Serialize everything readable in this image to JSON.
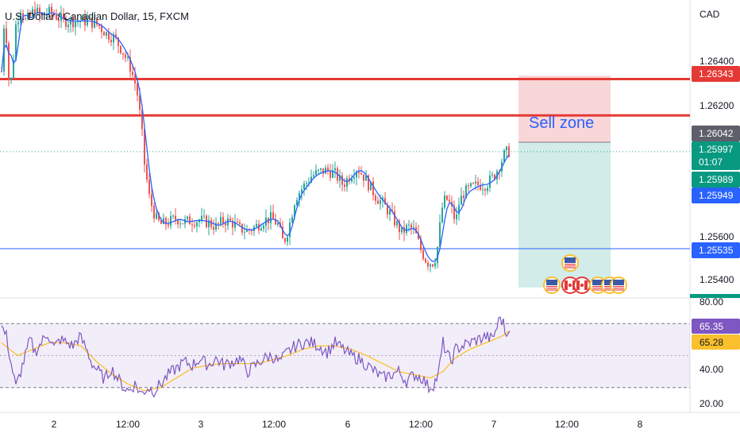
{
  "header": {
    "symbol_title": "U.S. Dollar / Canadian Dollar, 15, FXCM"
  },
  "price_axis": {
    "currency": "CAD",
    "ticks": [
      "1.26400",
      "1.26200",
      "1.25600",
      "1.25400"
    ]
  },
  "badges": {
    "resistance_upper": "1.26343",
    "target_top": "1.26042",
    "last_price": "1.25997",
    "countdown": "01:07",
    "ma_fast": "1.25989",
    "ma_slow": "1.25949",
    "support": "1.25535"
  },
  "annotation": {
    "sell_zone_label": "Sell zone"
  },
  "rsi_axis": {
    "ticks": [
      "80.00",
      "40.00",
      "20.00"
    ],
    "rsi_value": "65.35",
    "rsi_ma_value": "65.28"
  },
  "time_axis": {
    "labels": [
      "2",
      "12:00",
      "3",
      "12:00",
      "6",
      "12:00",
      "7",
      "12:00",
      "8"
    ]
  },
  "colors": {
    "up": "#26a69a",
    "down": "#ef5350",
    "ma_fast": "#2962ff",
    "ma_slow": "#fbc02d",
    "resistance": "#e53935",
    "support": "#2962ff",
    "rsi_line": "#7e57c2",
    "rsi_ma": "#fbc02d",
    "sell_zone": "#f7c5c8",
    "target_zone": "#b2dfdb",
    "badge_dark": "#5d606b",
    "badge_up": "#089981"
  },
  "chart_data": [
    {
      "type": "candlestick",
      "title": "U.S. Dollar / Canadian Dollar, 15, FXCM",
      "ylim": [
        1.253,
        1.2672
      ],
      "x_labels": [
        "2",
        "12:00",
        "3",
        "12:00",
        "6",
        "12:00",
        "7",
        "12:00",
        "8"
      ],
      "price_path": [
        [
          0,
          1.2638
        ],
        [
          3,
          1.266
        ],
        [
          6,
          1.2654
        ],
        [
          10,
          1.2628
        ],
        [
          14,
          1.264
        ],
        [
          18,
          1.266
        ],
        [
          24,
          1.2668
        ],
        [
          30,
          1.2662
        ],
        [
          36,
          1.2664
        ],
        [
          42,
          1.2668
        ],
        [
          48,
          1.2664
        ],
        [
          56,
          1.2666
        ],
        [
          62,
          1.2666
        ],
        [
          70,
          1.2664
        ],
        [
          78,
          1.2662
        ],
        [
          88,
          1.2662
        ],
        [
          100,
          1.2662
        ],
        [
          110,
          1.2662
        ],
        [
          122,
          1.266
        ],
        [
          132,
          1.2656
        ],
        [
          142,
          1.2654
        ],
        [
          152,
          1.2648
        ],
        [
          162,
          1.264
        ],
        [
          170,
          1.263
        ],
        [
          176,
          1.2612
        ],
        [
          180,
          1.2594
        ],
        [
          186,
          1.2578
        ],
        [
          194,
          1.2568
        ],
        [
          200,
          1.2565
        ],
        [
          210,
          1.2566
        ],
        [
          220,
          1.2568
        ],
        [
          230,
          1.2566
        ],
        [
          240,
          1.2567
        ],
        [
          250,
          1.2567
        ],
        [
          260,
          1.2566
        ],
        [
          270,
          1.2564
        ],
        [
          280,
          1.2567
        ],
        [
          290,
          1.2566
        ],
        [
          300,
          1.2563
        ],
        [
          310,
          1.2562
        ],
        [
          320,
          1.2564
        ],
        [
          330,
          1.2567
        ],
        [
          340,
          1.2568
        ],
        [
          348,
          1.2565
        ],
        [
          355,
          1.2556
        ],
        [
          362,
          1.2564
        ],
        [
          370,
          1.2578
        ],
        [
          380,
          1.2583
        ],
        [
          390,
          1.2588
        ],
        [
          400,
          1.259
        ],
        [
          410,
          1.2591
        ],
        [
          420,
          1.2589
        ],
        [
          430,
          1.2584
        ],
        [
          440,
          1.2589
        ],
        [
          448,
          1.2592
        ],
        [
          456,
          1.2588
        ],
        [
          464,
          1.2583
        ],
        [
          472,
          1.2578
        ],
        [
          480,
          1.2575
        ],
        [
          488,
          1.2571
        ],
        [
          496,
          1.2566
        ],
        [
          504,
          1.2561
        ],
        [
          512,
          1.2564
        ],
        [
          520,
          1.2562
        ],
        [
          528,
          1.2553
        ],
        [
          536,
          1.2547
        ],
        [
          544,
          1.2547
        ],
        [
          548,
          1.2551
        ],
        [
          552,
          1.2564
        ],
        [
          556,
          1.2576
        ],
        [
          562,
          1.2577
        ],
        [
          568,
          1.2571
        ],
        [
          572,
          1.2566
        ],
        [
          576,
          1.2575
        ],
        [
          582,
          1.258
        ],
        [
          590,
          1.2582
        ],
        [
          600,
          1.2584
        ],
        [
          610,
          1.2584
        ],
        [
          620,
          1.2588
        ],
        [
          628,
          1.2594
        ],
        [
          634,
          1.2599
        ],
        [
          640,
          1.26
        ]
      ],
      "ma_fast_last": 1.25989,
      "ma_slow_last": 1.25949,
      "last_price": 1.25997,
      "horizontal_lines": [
        {
          "name": "resistance-upper",
          "value": 1.26343,
          "color": "#e53935"
        },
        {
          "name": "resistance-lower",
          "value": 1.2617,
          "color": "#e53935"
        },
        {
          "name": "support",
          "value": 1.25535,
          "color": "#2962ff"
        }
      ],
      "zones": {
        "sell_zone": {
          "from": 1.26042,
          "to": 1.2636
        },
        "target_zone": {
          "from": 1.2535,
          "to": 1.26042
        }
      },
      "events": [
        "USD",
        "USD",
        "CAD",
        "CAD",
        "USD",
        "USD",
        "USD"
      ]
    },
    {
      "type": "line",
      "ylim": [
        15,
        85
      ],
      "bands": {
        "upper": 70,
        "middle": 50,
        "lower": 30
      },
      "rsi_path": [
        [
          0,
          68
        ],
        [
          6,
          62
        ],
        [
          12,
          45
        ],
        [
          18,
          30
        ],
        [
          24,
          40
        ],
        [
          30,
          50
        ],
        [
          36,
          60
        ],
        [
          42,
          52
        ],
        [
          50,
          58
        ],
        [
          58,
          64
        ],
        [
          66,
          55
        ],
        [
          74,
          60
        ],
        [
          82,
          58
        ],
        [
          90,
          56
        ],
        [
          98,
          62
        ],
        [
          106,
          55
        ],
        [
          114,
          45
        ],
        [
          122,
          40
        ],
        [
          130,
          35
        ],
        [
          138,
          42
        ],
        [
          146,
          36
        ],
        [
          154,
          30
        ],
        [
          160,
          28
        ],
        [
          168,
          32
        ],
        [
          176,
          26
        ],
        [
          184,
          30
        ],
        [
          192,
          28
        ],
        [
          200,
          32
        ],
        [
          210,
          38
        ],
        [
          220,
          42
        ],
        [
          230,
          46
        ],
        [
          240,
          44
        ],
        [
          250,
          48
        ],
        [
          260,
          44
        ],
        [
          270,
          48
        ],
        [
          280,
          44
        ],
        [
          290,
          46
        ],
        [
          300,
          48
        ],
        [
          310,
          40
        ],
        [
          320,
          44
        ],
        [
          330,
          48
        ],
        [
          340,
          50
        ],
        [
          350,
          46
        ],
        [
          360,
          52
        ],
        [
          370,
          56
        ],
        [
          380,
          58
        ],
        [
          390,
          58
        ],
        [
          400,
          56
        ],
        [
          410,
          52
        ],
        [
          420,
          58
        ],
        [
          430,
          54
        ],
        [
          440,
          50
        ],
        [
          450,
          48
        ],
        [
          460,
          44
        ],
        [
          470,
          40
        ],
        [
          480,
          36
        ],
        [
          490,
          38
        ],
        [
          500,
          40
        ],
        [
          510,
          34
        ],
        [
          520,
          38
        ],
        [
          530,
          36
        ],
        [
          538,
          30
        ],
        [
          544,
          32
        ],
        [
          550,
          38
        ],
        [
          556,
          58
        ],
        [
          560,
          52
        ],
        [
          566,
          46
        ],
        [
          572,
          54
        ],
        [
          580,
          56
        ],
        [
          590,
          58
        ],
        [
          600,
          60
        ],
        [
          610,
          62
        ],
        [
          618,
          60
        ],
        [
          624,
          68
        ],
        [
          628,
          74
        ],
        [
          632,
          70
        ],
        [
          636,
          62
        ],
        [
          640,
          65.35
        ]
      ],
      "rsi_ma_path": [
        [
          0,
          58
        ],
        [
          20,
          50
        ],
        [
          40,
          54
        ],
        [
          60,
          58
        ],
        [
          80,
          58
        ],
        [
          100,
          56
        ],
        [
          120,
          46
        ],
        [
          140,
          38
        ],
        [
          160,
          32
        ],
        [
          180,
          28
        ],
        [
          200,
          30
        ],
        [
          220,
          36
        ],
        [
          240,
          42
        ],
        [
          260,
          44
        ],
        [
          280,
          45
        ],
        [
          300,
          45
        ],
        [
          320,
          45
        ],
        [
          340,
          47
        ],
        [
          360,
          50
        ],
        [
          380,
          54
        ],
        [
          400,
          56
        ],
        [
          420,
          56
        ],
        [
          440,
          54
        ],
        [
          460,
          50
        ],
        [
          480,
          45
        ],
        [
          500,
          40
        ],
        [
          520,
          38
        ],
        [
          540,
          36
        ],
        [
          556,
          40
        ],
        [
          570,
          48
        ],
        [
          590,
          54
        ],
        [
          610,
          58
        ],
        [
          630,
          62
        ],
        [
          640,
          65.28
        ]
      ],
      "rsi_last": 65.35,
      "rsi_ma_last": 65.28
    }
  ]
}
